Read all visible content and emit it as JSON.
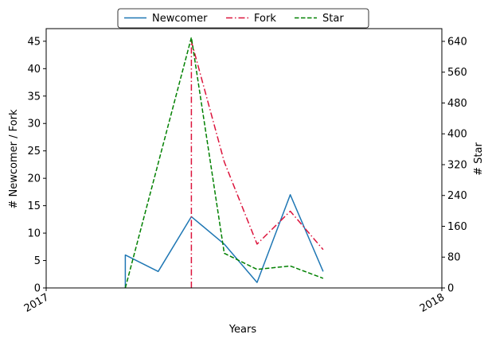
{
  "chart_data": {
    "type": "line",
    "xlabel": "Years",
    "ylabel_left": "# Newcomer / Fork",
    "ylabel_right": "# Star",
    "x_ticks": [
      "2017",
      "2018"
    ],
    "x_range": [
      2017.0,
      2018.0
    ],
    "ylim_left": [
      0,
      47.3
    ],
    "yticks_left": [
      0,
      5,
      10,
      15,
      20,
      25,
      30,
      35,
      40,
      45
    ],
    "ylim_right": [
      0,
      673
    ],
    "yticks_right": [
      0,
      80,
      160,
      240,
      320,
      400,
      480,
      560,
      640
    ],
    "legend_position": "top-center",
    "grid": false,
    "series": [
      {
        "name": "Newcomer",
        "axis": "left",
        "color": "#1f77b4",
        "style": "solid",
        "x": [
          2017.2,
          2017.2,
          2017.283,
          2017.367,
          2017.45,
          2017.533,
          2017.617,
          2017.7
        ],
        "y": [
          0,
          6,
          3,
          13,
          8,
          1,
          17,
          3
        ]
      },
      {
        "name": "Fork",
        "axis": "left",
        "color": "#dc143c",
        "style": "dashdot",
        "x": [
          2017.367,
          2017.367,
          2017.45,
          2017.533,
          2017.617,
          2017.7
        ],
        "y": [
          0,
          45,
          23,
          8,
          14,
          7
        ]
      },
      {
        "name": "Star",
        "axis": "right",
        "color": "#008000",
        "style": "dashed",
        "x": [
          2017.2,
          2017.367,
          2017.45,
          2017.533,
          2017.617,
          2017.7
        ],
        "y": [
          0,
          650,
          90,
          48,
          57,
          25
        ]
      }
    ]
  }
}
